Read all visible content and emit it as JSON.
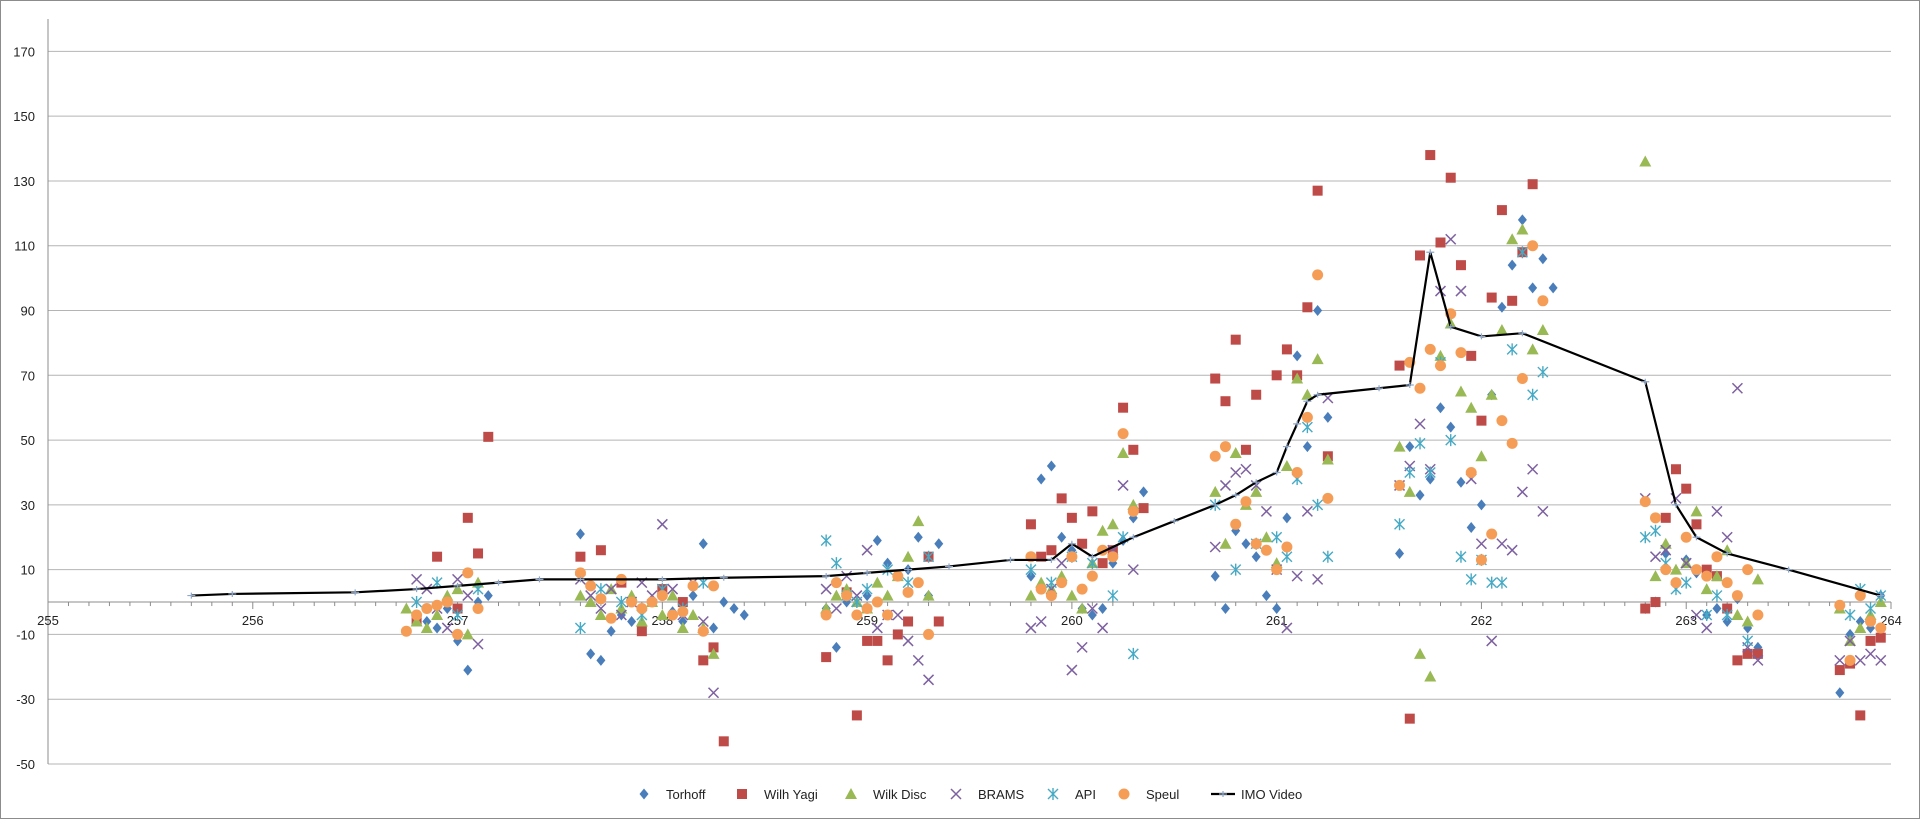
{
  "chart_data": {
    "type": "scatter",
    "title": "",
    "xlabel": "",
    "ylabel": "",
    "xlim": [
      255,
      264
    ],
    "ylim": [
      -50,
      180
    ],
    "x_ticks": [
      "255",
      "256",
      "257",
      "258",
      "259",
      "260",
      "261",
      "262",
      "263",
      "264"
    ],
    "y_ticks": [
      "-50",
      "-30",
      "-10",
      "10",
      "30",
      "50",
      "70",
      "90",
      "110",
      "130",
      "150",
      "170"
    ],
    "grid": "horizontal",
    "legend_position": "bottom",
    "series": [
      {
        "name": "Torhoff",
        "marker": "diamond",
        "color": "#4a7ebb",
        "x": [
          256.8,
          256.85,
          256.9,
          256.95,
          257.0,
          257.05,
          257.1,
          257.15,
          257.6,
          257.65,
          257.7,
          257.75,
          257.8,
          257.85,
          257.9,
          258.0,
          258.05,
          258.1,
          258.15,
          258.2,
          258.25,
          258.3,
          258.35,
          258.4,
          258.8,
          258.85,
          258.9,
          258.95,
          259.0,
          259.05,
          259.1,
          259.15,
          259.2,
          259.25,
          259.3,
          259.35,
          259.8,
          259.85,
          259.9,
          259.95,
          260.0,
          260.05,
          260.1,
          260.15,
          260.2,
          260.25,
          260.3,
          260.35,
          260.7,
          260.75,
          260.8,
          260.85,
          260.9,
          260.95,
          261.0,
          261.05,
          261.1,
          261.15,
          261.2,
          261.25,
          261.6,
          261.65,
          261.7,
          261.75,
          261.8,
          261.85,
          261.9,
          261.95,
          262.0,
          262.05,
          262.1,
          262.15,
          262.2,
          262.25,
          262.3,
          262.35,
          262.8,
          262.85,
          262.9,
          262.95,
          263.0,
          263.05,
          263.1,
          263.15,
          263.2,
          263.25,
          263.3,
          263.35,
          263.75,
          263.8,
          263.85,
          263.9,
          263.95
        ],
        "y": [
          -4,
          -6,
          -8,
          -2,
          -12,
          -21,
          0,
          2,
          21,
          -16,
          -18,
          -9,
          -4,
          -6,
          -2,
          4,
          -3,
          -6,
          2,
          18,
          -8,
          0,
          -2,
          -4,
          -2,
          -14,
          0,
          -4,
          2,
          19,
          12,
          8,
          10,
          20,
          2,
          18,
          8,
          38,
          42,
          20,
          16,
          -2,
          -4,
          -2,
          12,
          19,
          26,
          34,
          8,
          -2,
          22,
          18,
          14,
          2,
          -2,
          26,
          76,
          48,
          90,
          57,
          15,
          48,
          33,
          38,
          60,
          54,
          37,
          23,
          30,
          64,
          91,
          104,
          118,
          97,
          106,
          97,
          -2,
          0,
          15,
          6,
          13,
          9,
          -4,
          -2,
          -6,
          1,
          -8,
          -14,
          -28,
          -10,
          -6,
          -8,
          2
        ]
      },
      {
        "name": "Wilh Yagi",
        "marker": "square",
        "color": "#be4b48",
        "x": [
          256.8,
          256.9,
          257.0,
          257.05,
          257.1,
          257.15,
          257.6,
          257.7,
          257.8,
          257.9,
          258.0,
          258.1,
          258.2,
          258.25,
          258.3,
          258.8,
          258.9,
          258.95,
          259.0,
          259.05,
          259.1,
          259.15,
          259.2,
          259.3,
          259.35,
          259.8,
          259.85,
          259.9,
          259.95,
          260.0,
          260.05,
          260.1,
          260.15,
          260.2,
          260.25,
          260.3,
          260.35,
          260.7,
          260.75,
          260.8,
          260.85,
          260.9,
          261.0,
          261.05,
          261.1,
          261.15,
          261.2,
          261.25,
          261.6,
          261.65,
          261.7,
          261.75,
          261.8,
          261.85,
          261.9,
          261.95,
          262.0,
          262.05,
          262.1,
          262.15,
          262.2,
          262.25,
          262.8,
          262.85,
          262.9,
          262.95,
          263.0,
          263.05,
          263.1,
          263.15,
          263.2,
          263.25,
          263.3,
          263.35,
          263.75,
          263.8,
          263.85,
          263.9,
          263.95
        ],
        "y": [
          -6,
          14,
          -2,
          26,
          15,
          51,
          14,
          16,
          6,
          -9,
          4,
          0,
          -18,
          -14,
          -43,
          -17,
          3,
          -35,
          -12,
          -12,
          -18,
          -10,
          -6,
          14,
          -6,
          24,
          14,
          16,
          32,
          26,
          18,
          28,
          12,
          16,
          60,
          47,
          29,
          69,
          62,
          81,
          47,
          64,
          70,
          78,
          70,
          91,
          127,
          45,
          73,
          -36,
          107,
          138,
          111,
          131,
          104,
          76,
          56,
          94,
          121,
          93,
          108,
          129,
          -2,
          0,
          26,
          41,
          35,
          24,
          10,
          8,
          -2,
          -18,
          -16,
          -16,
          -21,
          -19,
          -35,
          -12,
          -11
        ]
      },
      {
        "name": "Wilk Disc",
        "marker": "triangle",
        "color": "#98b954",
        "x": [
          256.75,
          256.8,
          256.85,
          256.9,
          256.95,
          257.0,
          257.05,
          257.1,
          257.6,
          257.65,
          257.7,
          257.75,
          257.8,
          257.85,
          257.9,
          257.95,
          258.0,
          258.05,
          258.1,
          258.15,
          258.2,
          258.25,
          258.8,
          258.85,
          258.9,
          258.95,
          259.0,
          259.05,
          259.1,
          259.15,
          259.2,
          259.25,
          259.3,
          259.8,
          259.85,
          259.9,
          259.95,
          260.0,
          260.05,
          260.1,
          260.15,
          260.2,
          260.25,
          260.3,
          260.7,
          260.75,
          260.8,
          260.85,
          260.9,
          260.95,
          261.0,
          261.05,
          261.1,
          261.15,
          261.2,
          261.25,
          261.6,
          261.65,
          261.7,
          261.75,
          261.8,
          261.85,
          261.9,
          261.95,
          262.0,
          262.05,
          262.1,
          262.15,
          262.2,
          262.25,
          262.3,
          262.8,
          262.85,
          262.9,
          262.95,
          263.0,
          263.05,
          263.1,
          263.15,
          263.2,
          263.25,
          263.3,
          263.35,
          263.75,
          263.8,
          263.85,
          263.9,
          263.95
        ],
        "y": [
          -2,
          -6,
          -8,
          -4,
          2,
          4,
          -10,
          6,
          2,
          0,
          -4,
          4,
          -2,
          2,
          -6,
          0,
          -4,
          2,
          -8,
          -4,
          -8,
          -16,
          -2,
          2,
          4,
          0,
          -2,
          6,
          2,
          8,
          14,
          25,
          2,
          2,
          6,
          4,
          8,
          2,
          -2,
          12,
          22,
          24,
          46,
          30,
          34,
          18,
          46,
          30,
          34,
          20,
          12,
          42,
          69,
          64,
          75,
          44,
          48,
          34,
          -16,
          -23,
          76,
          86,
          65,
          60,
          45,
          64,
          84,
          112,
          115,
          78,
          84,
          136,
          8,
          18,
          10,
          12,
          28,
          4,
          8,
          16,
          -4,
          -6,
          7,
          -2,
          -12,
          -8,
          -4,
          0
        ]
      },
      {
        "name": "BRAMS",
        "marker": "x",
        "color": "#7d60a0",
        "x": [
          256.8,
          256.85,
          256.9,
          256.95,
          257.0,
          257.05,
          257.1,
          257.6,
          257.65,
          257.7,
          257.75,
          257.8,
          257.85,
          257.9,
          257.95,
          258.0,
          258.05,
          258.1,
          258.15,
          258.2,
          258.25,
          258.8,
          258.85,
          258.9,
          258.95,
          259.0,
          259.05,
          259.1,
          259.15,
          259.2,
          259.25,
          259.3,
          259.8,
          259.85,
          259.9,
          259.95,
          260.0,
          260.05,
          260.1,
          260.15,
          260.2,
          260.25,
          260.3,
          260.7,
          260.75,
          260.8,
          260.85,
          260.9,
          260.95,
          261.0,
          261.05,
          261.1,
          261.15,
          261.2,
          261.25,
          261.6,
          261.65,
          261.7,
          261.75,
          261.8,
          261.85,
          261.9,
          261.95,
          262.0,
          262.05,
          262.1,
          262.15,
          262.2,
          262.25,
          262.3,
          262.8,
          262.85,
          262.9,
          262.95,
          263.0,
          263.05,
          263.1,
          263.15,
          263.2,
          263.25,
          263.3,
          263.35,
          263.75,
          263.8,
          263.85,
          263.9,
          263.95
        ],
        "y": [
          7,
          4,
          -2,
          -8,
          7,
          2,
          -13,
          7,
          2,
          -2,
          4,
          -4,
          0,
          6,
          2,
          24,
          4,
          -4,
          6,
          -6,
          -28,
          4,
          -2,
          8,
          2,
          16,
          -8,
          -4,
          -4,
          -12,
          -18,
          -24,
          -8,
          -6,
          4,
          12,
          -21,
          -14,
          -2,
          -8,
          16,
          36,
          10,
          17,
          36,
          40,
          41,
          36,
          28,
          10,
          -8,
          8,
          28,
          7,
          63,
          36,
          42,
          55,
          41,
          96,
          112,
          96,
          38,
          18,
          -12,
          18,
          16,
          34,
          41,
          28,
          32,
          14,
          16,
          32,
          12,
          -4,
          -8,
          28,
          20,
          66,
          -14,
          -18,
          -18,
          -12,
          -18,
          -16,
          -18
        ]
      },
      {
        "name": "API",
        "marker": "star",
        "color": "#46aac5",
        "x": [
          256.8,
          256.9,
          257.0,
          257.1,
          257.6,
          257.7,
          257.8,
          257.9,
          258.0,
          258.1,
          258.2,
          258.8,
          258.85,
          258.9,
          258.95,
          259.0,
          259.1,
          259.2,
          259.3,
          259.8,
          259.9,
          260.0,
          260.1,
          260.2,
          260.25,
          260.3,
          260.7,
          260.8,
          260.9,
          261.0,
          261.05,
          261.1,
          261.15,
          261.2,
          261.25,
          261.6,
          261.65,
          261.7,
          261.75,
          261.8,
          261.85,
          261.9,
          261.95,
          262.0,
          262.05,
          262.1,
          262.15,
          262.2,
          262.25,
          262.3,
          262.8,
          262.85,
          262.9,
          262.95,
          263.0,
          263.1,
          263.15,
          263.2,
          263.3,
          263.8,
          263.85,
          263.9,
          263.95
        ],
        "y": [
          0,
          6,
          -4,
          4,
          -8,
          4,
          0,
          -4,
          4,
          -2,
          6,
          19,
          12,
          2,
          0,
          4,
          10,
          6,
          14,
          10,
          6,
          14,
          12,
          2,
          20,
          -16,
          30,
          10,
          18,
          20,
          14,
          38,
          54,
          30,
          14,
          24,
          40,
          49,
          40,
          74,
          50,
          14,
          7,
          13,
          6,
          6,
          78,
          108,
          64,
          71,
          20,
          22,
          12,
          4,
          6,
          -4,
          2,
          -4,
          -12,
          -4,
          4,
          -2,
          2
        ]
      },
      {
        "name": "Speul",
        "marker": "circle",
        "color": "#f59d56",
        "x": [
          256.75,
          256.8,
          256.85,
          256.9,
          256.95,
          257.0,
          257.05,
          257.1,
          257.6,
          257.65,
          257.7,
          257.75,
          257.8,
          257.85,
          257.9,
          257.95,
          258.0,
          258.05,
          258.1,
          258.15,
          258.2,
          258.25,
          258.8,
          258.85,
          258.9,
          258.95,
          259.0,
          259.05,
          259.1,
          259.15,
          259.2,
          259.25,
          259.3,
          259.8,
          259.85,
          259.9,
          259.95,
          260.0,
          260.05,
          260.1,
          260.15,
          260.2,
          260.25,
          260.3,
          260.7,
          260.75,
          260.8,
          260.85,
          260.9,
          260.95,
          261.0,
          261.05,
          261.1,
          261.15,
          261.2,
          261.25,
          261.6,
          261.65,
          261.7,
          261.75,
          261.8,
          261.85,
          261.9,
          261.95,
          262.0,
          262.05,
          262.1,
          262.15,
          262.2,
          262.25,
          262.3,
          262.8,
          262.85,
          262.9,
          262.95,
          263.0,
          263.05,
          263.1,
          263.15,
          263.2,
          263.25,
          263.3,
          263.35,
          263.75,
          263.8,
          263.85,
          263.9,
          263.95
        ],
        "y": [
          -9,
          -4,
          -2,
          -1,
          0,
          -10,
          9,
          -2,
          9,
          5,
          1,
          -5,
          7,
          0,
          -2,
          0,
          2,
          -4,
          -3,
          5,
          -9,
          5,
          -4,
          6,
          2,
          -4,
          -2,
          0,
          -4,
          8,
          3,
          6,
          -10,
          14,
          4,
          2,
          6,
          14,
          4,
          8,
          16,
          14,
          52,
          28,
          45,
          48,
          24,
          31,
          18,
          16,
          10,
          17,
          40,
          57,
          101,
          32,
          36,
          74,
          66,
          78,
          73,
          89,
          77,
          40,
          13,
          21,
          56,
          49,
          69,
          110,
          93,
          31,
          26,
          10,
          6,
          20,
          10,
          8,
          14,
          6,
          2,
          10,
          -4,
          -1,
          -18,
          2,
          -6,
          -8
        ]
      },
      {
        "name": "IMO Video",
        "marker": "line",
        "color": "#000000",
        "x": [
          255.7,
          255.9,
          256.5,
          256.8,
          257.0,
          257.2,
          257.4,
          257.6,
          258.0,
          258.3,
          258.8,
          259.0,
          259.2,
          259.4,
          259.7,
          259.9,
          260.0,
          260.1,
          260.3,
          260.5,
          260.7,
          260.8,
          260.9,
          261.0,
          261.05,
          261.1,
          261.15,
          261.2,
          261.5,
          261.65,
          261.75,
          261.85,
          262.0,
          262.2,
          262.8,
          262.95,
          263.05,
          263.2,
          263.5,
          263.95
        ],
        "y": [
          2,
          2.5,
          3,
          4,
          5,
          6,
          7,
          7,
          7,
          7.5,
          8,
          9,
          10,
          11,
          13,
          13,
          18,
          14,
          20,
          25,
          30,
          33,
          37,
          40,
          48,
          55,
          62,
          64,
          66,
          67,
          108,
          85,
          82,
          83,
          68,
          30,
          20,
          15,
          10,
          2
        ]
      }
    ]
  }
}
